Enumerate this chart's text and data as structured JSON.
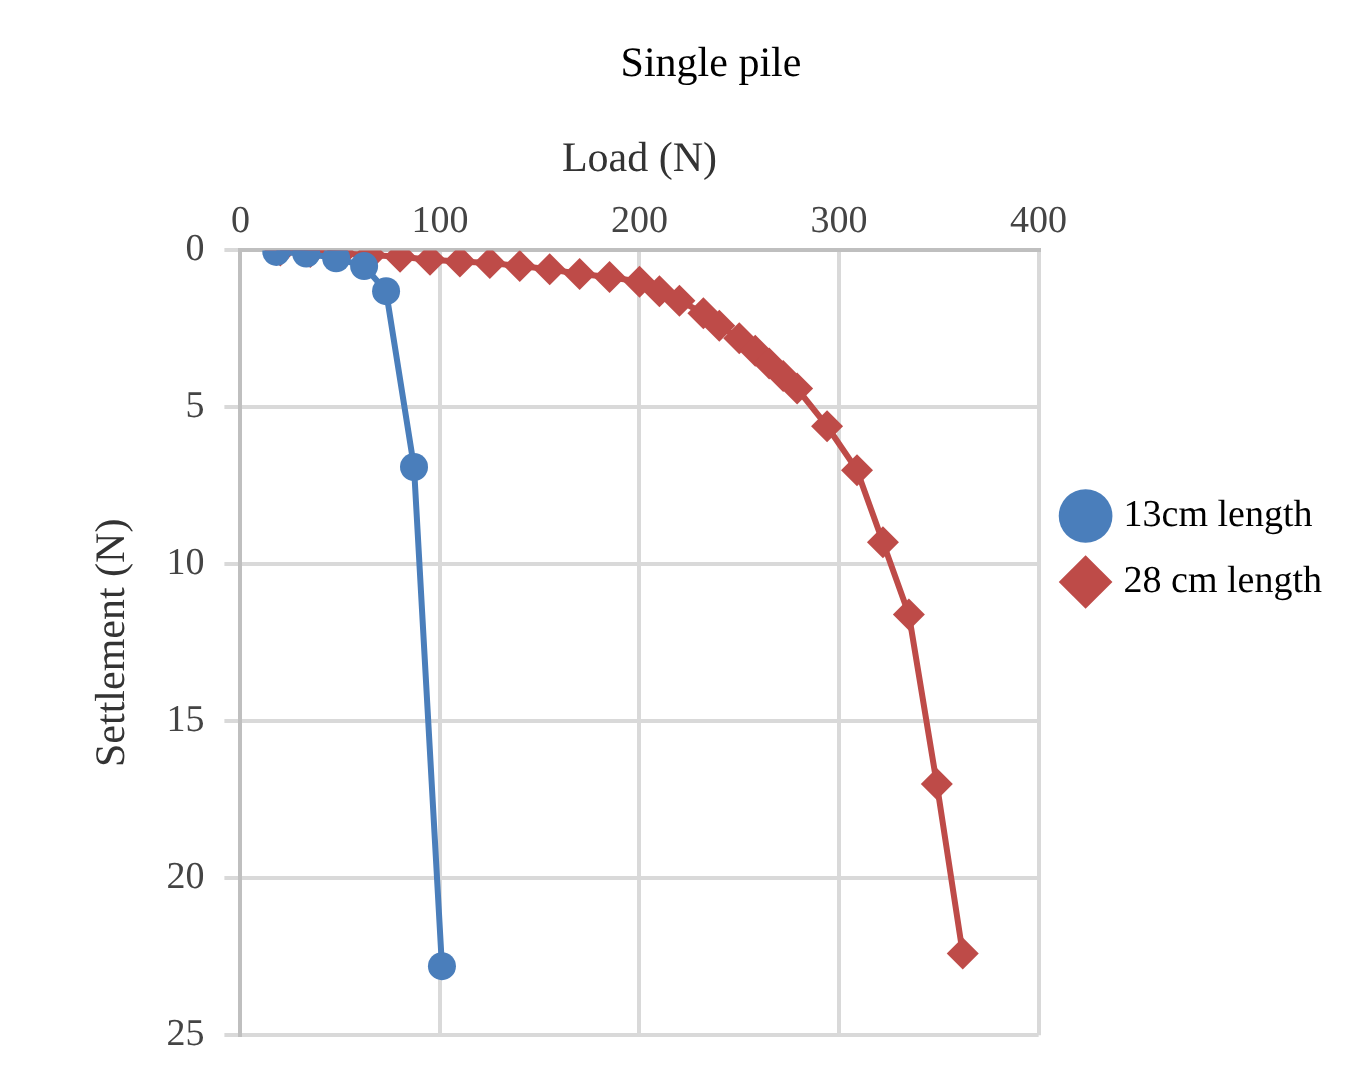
{
  "chart_data": {
    "type": "line",
    "title": "Single pile",
    "xlabel": "Load (N)",
    "ylabel": "Settlement (N)",
    "xlim": [
      0,
      400
    ],
    "xticks": [
      0,
      100,
      200,
      300,
      400
    ],
    "ylim": [
      25,
      0
    ],
    "yticks": [
      0,
      5,
      10,
      15,
      20,
      25
    ],
    "grid": true,
    "legend": "right",
    "series": [
      {
        "name": "13cm length",
        "color": "#4a7ebb",
        "marker": "circle",
        "x": [
          18,
          33,
          48,
          62,
          73,
          87,
          101
        ],
        "values": [
          0.05,
          0.1,
          0.25,
          0.5,
          1.3,
          6.9,
          22.8
        ]
      },
      {
        "name": "28 cm length",
        "color": "#be4b48",
        "marker": "diamond",
        "x": [
          20,
          35,
          50,
          65,
          80,
          95,
          110,
          125,
          140,
          155,
          170,
          185,
          200,
          210,
          220,
          232,
          240,
          250,
          258,
          265,
          272,
          279,
          294,
          309,
          322,
          335,
          349,
          362
        ],
        "values": [
          0,
          0.05,
          0.1,
          0.15,
          0.2,
          0.3,
          0.35,
          0.4,
          0.5,
          0.6,
          0.75,
          0.85,
          1.0,
          1.3,
          1.6,
          2.0,
          2.4,
          2.8,
          3.2,
          3.6,
          4.0,
          4.4,
          5.6,
          7.0,
          9.3,
          11.6,
          17.0,
          22.4
        ]
      }
    ]
  }
}
